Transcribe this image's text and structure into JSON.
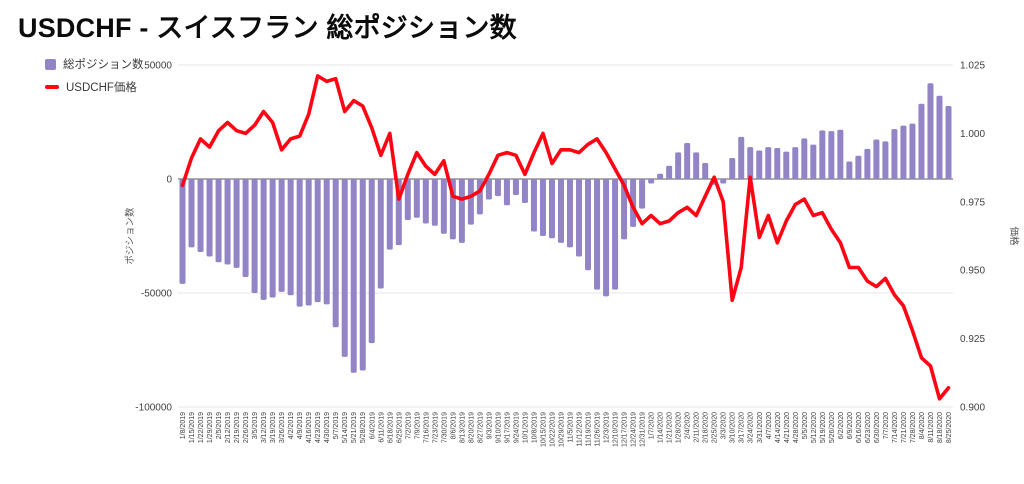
{
  "header": {
    "title": "USDCHF - スイスフラン 総ポジション数"
  },
  "legend": {
    "items": [
      {
        "label": "総ポジション数",
        "color": "#9284C5",
        "type": "bar"
      },
      {
        "label": "USDCHF価格",
        "color": "#FF0514",
        "type": "line"
      }
    ]
  },
  "chart_data": {
    "type": "bar",
    "title": "USDCHF - スイスフラン 総ポジション数",
    "categories": [
      "1/8/2019",
      "1/15/2019",
      "1/22/2019",
      "1/29/2019",
      "2/5/2019",
      "2/12/2019",
      "2/19/2019",
      "2/26/2019",
      "3/5/2019",
      "3/12/2019",
      "3/19/2019",
      "3/26/2019",
      "4/2/2019",
      "4/9/2019",
      "4/16/2019",
      "4/23/2019",
      "4/30/2019",
      "5/7/2019",
      "5/14/2019",
      "5/21/2019",
      "5/28/2019",
      "6/4/2019",
      "6/11/2019",
      "6/18/2019",
      "6/25/2019",
      "7/2/2019",
      "7/9/2019",
      "7/16/2019",
      "7/23/2019",
      "7/30/2019",
      "8/6/2019",
      "8/13/2019",
      "8/20/2019",
      "8/27/2019",
      "9/3/2019",
      "9/10/2019",
      "9/17/2019",
      "9/24/2019",
      "10/1/2019",
      "10/8/2019",
      "10/15/2019",
      "10/22/2019",
      "10/29/2019",
      "11/5/2019",
      "11/12/2019",
      "11/19/2019",
      "11/26/2019",
      "12/3/2019",
      "12/10/2019",
      "12/17/2019",
      "12/24/2019",
      "12/31/2019",
      "1/7/2020",
      "1/14/2020",
      "1/21/2020",
      "1/28/2020",
      "2/4/2020",
      "2/11/2020",
      "2/18/2020",
      "2/25/2020",
      "3/3/2020",
      "3/10/2020",
      "3/17/2020",
      "3/24/2020",
      "3/31/2020",
      "4/7/2020",
      "4/14/2020",
      "4/21/2020",
      "4/28/2020",
      "5/5/2020",
      "5/12/2020",
      "5/19/2020",
      "5/26/2020",
      "6/2/2020",
      "6/9/2020",
      "6/16/2020",
      "6/23/2020",
      "6/30/2020",
      "7/7/2020",
      "7/14/2020",
      "7/21/2020",
      "7/28/2020",
      "8/4/2020",
      "8/11/2020",
      "8/18/2020",
      "8/25/2020"
    ],
    "series": [
      {
        "name": "総ポジション数",
        "type": "bar",
        "axis": "left",
        "color": "#9284C5",
        "values": [
          -46000,
          -30000,
          -32000,
          -34000,
          -36500,
          -37500,
          -39000,
          -43000,
          -50000,
          -53000,
          -52000,
          -49500,
          -51000,
          -56000,
          -55500,
          -54000,
          -55000,
          -65000,
          -78000,
          -85000,
          -84000,
          -72000,
          -48000,
          -31000,
          -29000,
          -18000,
          -17000,
          -19500,
          -20500,
          -24000,
          -26500,
          -28000,
          -20000,
          -15500,
          -9000,
          -7500,
          -11500,
          -7000,
          -10500,
          -23000,
          -25000,
          -26000,
          -28000,
          -30000,
          -34000,
          -40000,
          -48500,
          -51500,
          -48500,
          -26500,
          -21000,
          -13000,
          -2000,
          2300,
          5800,
          11700,
          15800,
          11700,
          7000,
          -2500,
          -2000,
          9200,
          18500,
          14000,
          12500,
          14000,
          13600,
          12000,
          14000,
          17800,
          15100,
          21300,
          21000,
          21600,
          7700,
          10200,
          13200,
          17300,
          16500,
          21900,
          23400,
          24300,
          33000,
          42000,
          36500,
          32000
        ]
      },
      {
        "name": "USDCHF価格",
        "type": "line",
        "axis": "right",
        "color": "#FF0514",
        "values": [
          0.981,
          0.991,
          0.998,
          0.995,
          1.001,
          1.004,
          1.001,
          1.0,
          1.003,
          1.008,
          1.004,
          0.994,
          0.998,
          0.999,
          1.007,
          1.021,
          1.019,
          1.02,
          1.008,
          1.012,
          1.01,
          1.002,
          0.992,
          1.0,
          0.976,
          0.985,
          0.993,
          0.988,
          0.985,
          0.99,
          0.977,
          0.976,
          0.977,
          0.979,
          0.985,
          0.992,
          0.993,
          0.992,
          0.985,
          0.993,
          1.0,
          0.989,
          0.994,
          0.994,
          0.993,
          0.996,
          0.998,
          0.993,
          0.987,
          0.981,
          0.973,
          0.967,
          0.97,
          0.967,
          0.968,
          0.971,
          0.973,
          0.97,
          0.977,
          0.984,
          0.975,
          0.939,
          0.951,
          0.984,
          0.962,
          0.97,
          0.96,
          0.968,
          0.974,
          0.976,
          0.97,
          0.971,
          0.965,
          0.96,
          0.951,
          0.951,
          0.946,
          0.944,
          0.947,
          0.941,
          0.937,
          0.928,
          0.918,
          0.915,
          0.903,
          0.907
        ]
      }
    ],
    "left_axis": {
      "title": "ポジション数",
      "ticks": [
        50000,
        0,
        -50000,
        -100000
      ],
      "range": [
        -100000,
        50000
      ]
    },
    "right_axis": {
      "title": "価格",
      "ticks": [
        1.025,
        1.0,
        0.975,
        0.95,
        0.925,
        0.9
      ],
      "range": [
        0.9,
        1.025
      ]
    },
    "grid": true,
    "legend_position": "top-left"
  }
}
